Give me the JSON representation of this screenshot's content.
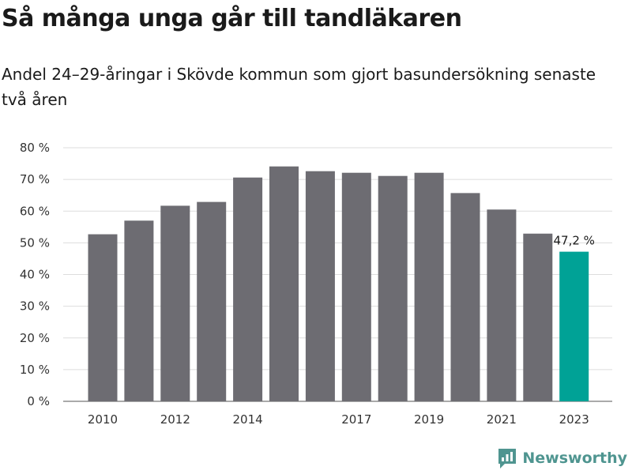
{
  "title": "Så många unga går till tandläkaren",
  "subtitle": "Andel 24–29-åringar i Skövde kommun som gjort basundersökning senaste två åren",
  "brand": "Newsworthy",
  "colors": {
    "bar": "#6d6c72",
    "highlight": "#00a296",
    "grid": "#dddddd",
    "logo": "#4f9590"
  },
  "chart_data": {
    "type": "bar",
    "title": "Så många unga går till tandläkaren",
    "subtitle": "Andel 24–29-åringar i Skövde kommun som gjort basundersökning senaste två åren",
    "categories": [
      "2010",
      "2011",
      "2012",
      "2013",
      "2014",
      "2015",
      "2016",
      "2017",
      "2018",
      "2019",
      "2020",
      "2021",
      "2022",
      "2023"
    ],
    "values": [
      52.7,
      57.0,
      61.7,
      62.9,
      70.6,
      74.1,
      72.6,
      72.1,
      71.1,
      72.1,
      65.7,
      60.5,
      52.9,
      47.2
    ],
    "x_tick_labels": [
      "2010",
      "",
      "2012",
      "",
      "2014",
      "",
      "",
      "2017",
      "",
      "2019",
      "",
      "2021",
      "",
      "2023"
    ],
    "y_ticks": [
      "0 %",
      "10 %",
      "20 %",
      "30 %",
      "40 %",
      "50 %",
      "60 %",
      "70 %",
      "80 %"
    ],
    "ylim": [
      0,
      80
    ],
    "highlight_index": 13,
    "data_labels": [
      {
        "index": 13,
        "text": "47,2 %"
      }
    ],
    "grid": true,
    "legend": "none"
  }
}
